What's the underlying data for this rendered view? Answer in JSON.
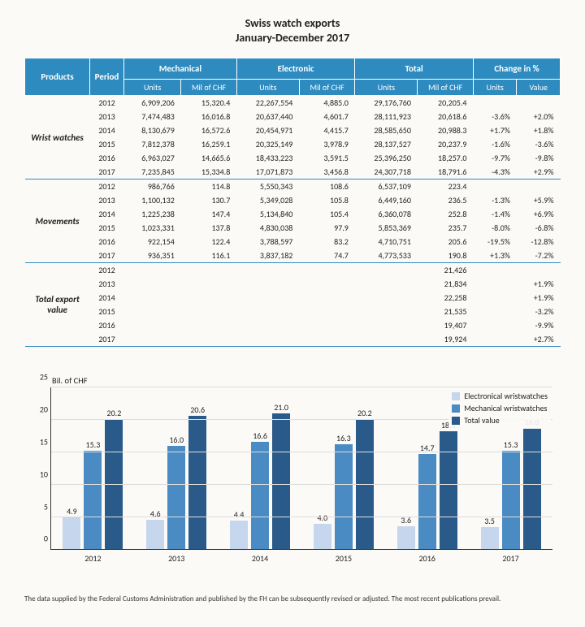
{
  "title_line1": "Swiss watch exports",
  "title_line2": "January-December 2017",
  "headers": {
    "products": "Products",
    "period": "Period",
    "mechanical": "Mechanical",
    "electronic": "Electronic",
    "total": "Total",
    "change": "Change in %",
    "units": "Units",
    "mil": "Mil of CHF",
    "value": "Value"
  },
  "sections": [
    {
      "name": "Wrist watches",
      "rows": [
        {
          "period": "2012",
          "mu": "6,909,206",
          "mc": "15,320.4",
          "eu": "22,267,554",
          "ec": "4,885.0",
          "tu": "29,176,760",
          "tc": "20,205.4",
          "cu": "",
          "cv": ""
        },
        {
          "period": "2013",
          "mu": "7,474,483",
          "mc": "16,016.8",
          "eu": "20,637,440",
          "ec": "4,601.7",
          "tu": "28,111,923",
          "tc": "20,618.6",
          "cu": "-3.6%",
          "cv": "+2.0%"
        },
        {
          "period": "2014",
          "mu": "8,130,679",
          "mc": "16,572.6",
          "eu": "20,454,971",
          "ec": "4,415.7",
          "tu": "28,585,650",
          "tc": "20,988.3",
          "cu": "+1.7%",
          "cv": "+1.8%"
        },
        {
          "period": "2015",
          "mu": "7,812,378",
          "mc": "16,259.1",
          "eu": "20,325,149",
          "ec": "3,978.9",
          "tu": "28,137,527",
          "tc": "20,237.9",
          "cu": "-1.6%",
          "cv": "-3.6%"
        },
        {
          "period": "2016",
          "mu": "6,963,027",
          "mc": "14,665.6",
          "eu": "18,433,223",
          "ec": "3,591.5",
          "tu": "25,396,250",
          "tc": "18,257.0",
          "cu": "-9.7%",
          "cv": "-9.8%"
        },
        {
          "period": "2017",
          "mu": "7,235,845",
          "mc": "15,334.8",
          "eu": "17,071,873",
          "ec": "3,456.8",
          "tu": "24,307,718",
          "tc": "18,791.6",
          "cu": "-4.3%",
          "cv": "+2.9%"
        }
      ]
    },
    {
      "name": "Movements",
      "rows": [
        {
          "period": "2012",
          "mu": "986,766",
          "mc": "114.8",
          "eu": "5,550,343",
          "ec": "108.6",
          "tu": "6,537,109",
          "tc": "223.4",
          "cu": "",
          "cv": ""
        },
        {
          "period": "2013",
          "mu": "1,100,132",
          "mc": "130.7",
          "eu": "5,349,028",
          "ec": "105.8",
          "tu": "6,449,160",
          "tc": "236.5",
          "cu": "-1.3%",
          "cv": "+5.9%"
        },
        {
          "period": "2014",
          "mu": "1,225,238",
          "mc": "147.4",
          "eu": "5,134,840",
          "ec": "105.4",
          "tu": "6,360,078",
          "tc": "252.8",
          "cu": "-1.4%",
          "cv": "+6.9%"
        },
        {
          "period": "2015",
          "mu": "1,023,331",
          "mc": "137.8",
          "eu": "4,830,038",
          "ec": "97.9",
          "tu": "5,853,369",
          "tc": "235.7",
          "cu": "-8.0%",
          "cv": "-6.8%"
        },
        {
          "period": "2016",
          "mu": "922,154",
          "mc": "122.4",
          "eu": "3,788,597",
          "ec": "83.2",
          "tu": "4,710,751",
          "tc": "205.6",
          "cu": "-19.5%",
          "cv": "-12.8%"
        },
        {
          "period": "2017",
          "mu": "936,351",
          "mc": "116.1",
          "eu": "3,837,182",
          "ec": "74.7",
          "tu": "4,773,533",
          "tc": "190.8",
          "cu": "+1.3%",
          "cv": "-7.2%"
        }
      ]
    },
    {
      "name": "Total export value",
      "rows": [
        {
          "period": "2012",
          "mu": "",
          "mc": "",
          "eu": "",
          "ec": "",
          "tu": "",
          "tc": "21,426",
          "cu": "",
          "cv": ""
        },
        {
          "period": "2013",
          "mu": "",
          "mc": "",
          "eu": "",
          "ec": "",
          "tu": "",
          "tc": "21,834",
          "cu": "",
          "cv": "+1.9%"
        },
        {
          "period": "2014",
          "mu": "",
          "mc": "",
          "eu": "",
          "ec": "",
          "tu": "",
          "tc": "22,258",
          "cu": "",
          "cv": "+1.9%"
        },
        {
          "period": "2015",
          "mu": "",
          "mc": "",
          "eu": "",
          "ec": "",
          "tu": "",
          "tc": "21,535",
          "cu": "",
          "cv": "-3.2%"
        },
        {
          "period": "2016",
          "mu": "",
          "mc": "",
          "eu": "",
          "ec": "",
          "tu": "",
          "tc": "19,407",
          "cu": "",
          "cv": "-9.9%"
        },
        {
          "period": "2017",
          "mu": "",
          "mc": "",
          "eu": "",
          "ec": "",
          "tu": "",
          "tc": "19,924",
          "cu": "",
          "cv": "+2.7%"
        }
      ]
    }
  ],
  "chart": {
    "ylabel": "Bil. of CHF",
    "ymax": 25,
    "ytick_step": 5,
    "yticks": [
      0,
      5,
      10,
      15,
      20,
      25
    ],
    "colors": {
      "elec": "#c6d6ec",
      "mech": "#4a8bc4",
      "total": "#2a5a8a"
    },
    "legend": {
      "elec": "Electronical wristwatches",
      "mech": "Mechanical wristwatches",
      "total": "Total value"
    },
    "groups": [
      {
        "year": "2012",
        "elec": 4.9,
        "mech": 15.3,
        "total": 20.2
      },
      {
        "year": "2013",
        "elec": 4.6,
        "mech": 16.0,
        "total": 20.6
      },
      {
        "year": "2014",
        "elec": 4.4,
        "mech": 16.6,
        "total": 21.0
      },
      {
        "year": "2015",
        "elec": 4.0,
        "mech": 16.3,
        "total": 20.2
      },
      {
        "year": "2016",
        "elec": 3.6,
        "mech": 14.7,
        "total": 18.3
      },
      {
        "year": "2017",
        "elec": 3.5,
        "mech": 15.3,
        "total": 18.8
      }
    ]
  },
  "footnote": "The data supplied by the Federal Customs Administration and published by the FH can be subsequently revised or adjusted. The most recent publications prevail."
}
